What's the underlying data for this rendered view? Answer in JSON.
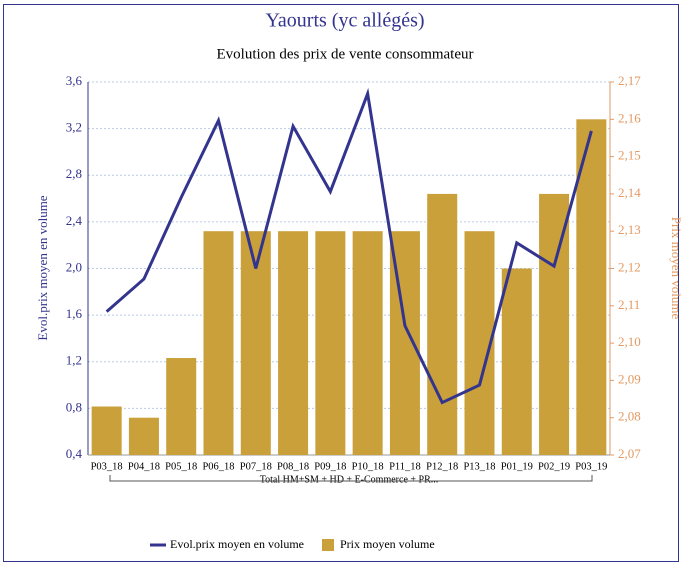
{
  "chart_data": {
    "type": "bar_line",
    "title": "Yaourts (yc allégés)",
    "subtitle": "Evolution des prix de vente consommateur",
    "y_label": "Evol.prix moyen en volume",
    "y2_label": "Prix moyen volume",
    "group_label": "Total HM+SM + HD + E-Commerce + PR...",
    "categories": [
      "P03_18",
      "P04_18",
      "P05_18",
      "P06_18",
      "P07_18",
      "P08_18",
      "P09_18",
      "P10_18",
      "P11_18",
      "P12_18",
      "P13_18",
      "P01_19",
      "P02_19",
      "P03_19"
    ],
    "series": [
      {
        "name": "Evol.prix moyen en volume",
        "type": "line",
        "axis": "y",
        "color": "#33348e",
        "values": [
          1.63,
          1.91,
          2.61,
          3.27,
          2.0,
          3.22,
          2.66,
          3.5,
          1.51,
          0.85,
          1.0,
          2.22,
          2.02,
          3.18
        ]
      },
      {
        "name": "Prix moyen volume",
        "type": "bar",
        "axis": "y2",
        "color": "#c9a03a",
        "values": [
          2.083,
          2.08,
          2.096,
          2.13,
          2.13,
          2.13,
          2.13,
          2.13,
          2.13,
          2.14,
          2.13,
          2.12,
          2.14,
          2.16
        ]
      }
    ],
    "ylim": [
      0.4,
      3.6
    ],
    "yticks": [
      {
        "value": 0.4,
        "label": "0,4"
      },
      {
        "value": 0.8,
        "label": "0,8"
      },
      {
        "value": 1.2,
        "label": "1,2"
      },
      {
        "value": 1.6,
        "label": "1,6"
      },
      {
        "value": 2.0,
        "label": "2,0"
      },
      {
        "value": 2.4,
        "label": "2,4"
      },
      {
        "value": 2.8,
        "label": "2,8"
      },
      {
        "value": 3.2,
        "label": "3,2"
      },
      {
        "value": 3.6,
        "label": "3,6"
      }
    ],
    "y2lim": [
      2.07,
      2.17
    ],
    "y2ticks": [
      {
        "value": 2.07,
        "label": "2,07"
      },
      {
        "value": 2.08,
        "label": "2,08"
      },
      {
        "value": 2.09,
        "label": "2,09"
      },
      {
        "value": 2.1,
        "label": "2,10"
      },
      {
        "value": 2.11,
        "label": "2,11"
      },
      {
        "value": 2.12,
        "label": "2,12"
      },
      {
        "value": 2.13,
        "label": "2,13"
      },
      {
        "value": 2.14,
        "label": "2,14"
      },
      {
        "value": 2.15,
        "label": "2,15"
      },
      {
        "value": 2.16,
        "label": "2,16"
      },
      {
        "value": 2.17,
        "label": "2,17"
      }
    ],
    "grid": true
  }
}
